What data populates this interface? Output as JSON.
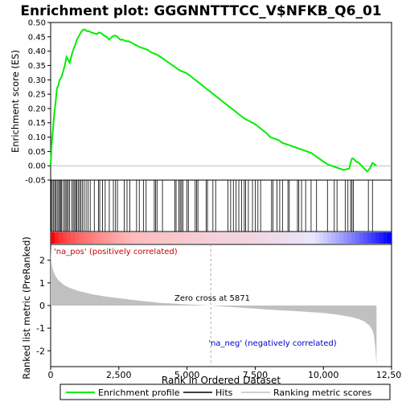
{
  "chart_data": [
    {
      "type": "line",
      "title": "Enrichment plot: GGGNNTTTCC_V$NFKB_Q6_01",
      "ylabel": "Enrichment score (ES)",
      "ylim": [
        -0.05,
        0.5
      ],
      "yticks": [
        "-0.05",
        "0.00",
        "0.05",
        "0.10",
        "0.15",
        "0.20",
        "0.25",
        "0.30",
        "0.35",
        "0.40",
        "0.45",
        "0.50"
      ],
      "line_color": "#00ee00",
      "series": [
        {
          "name": "Enrichment profile",
          "x": [
            0,
            40,
            80,
            130,
            180,
            230,
            280,
            330,
            400,
            460,
            520,
            580,
            640,
            700,
            780,
            850,
            900,
            960,
            1020,
            1080,
            1140,
            1200,
            1260,
            1330,
            1400,
            1500,
            1600,
            1700,
            1760,
            1850,
            1950,
            2050,
            2150,
            2250,
            2350,
            2450,
            2550,
            2650,
            2750,
            2850,
            2950,
            3050,
            3150,
            3250,
            3400,
            3550,
            3700,
            3850,
            3950,
            4100,
            4250,
            4400,
            4550,
            4700,
            4800,
            4950,
            5100,
            5300,
            5500,
            5700,
            5900,
            6100,
            6300,
            6500,
            6700,
            6900,
            7100,
            7300,
            7500,
            7700,
            7900,
            8050,
            8200,
            8350,
            8500,
            8650,
            8800,
            8950,
            9100,
            9250,
            9400,
            9550,
            9700,
            9850,
            10000,
            10150,
            10300,
            10450,
            10600,
            10750,
            10850,
            10950,
            11000,
            11050,
            11100,
            11200,
            11300,
            11400,
            11500,
            11600,
            11700,
            11800,
            11950
          ],
          "y": [
            0.0,
            0.08,
            0.12,
            0.18,
            0.22,
            0.27,
            0.28,
            0.3,
            0.31,
            0.33,
            0.35,
            0.38,
            0.37,
            0.36,
            0.39,
            0.41,
            0.42,
            0.44,
            0.45,
            0.46,
            0.47,
            0.475,
            0.475,
            0.47,
            0.47,
            0.465,
            0.462,
            0.46,
            0.465,
            0.463,
            0.455,
            0.45,
            0.44,
            0.45,
            0.455,
            0.45,
            0.44,
            0.44,
            0.435,
            0.435,
            0.43,
            0.425,
            0.42,
            0.415,
            0.41,
            0.405,
            0.395,
            0.39,
            0.385,
            0.375,
            0.365,
            0.355,
            0.345,
            0.335,
            0.33,
            0.325,
            0.315,
            0.3,
            0.285,
            0.27,
            0.255,
            0.24,
            0.225,
            0.21,
            0.195,
            0.18,
            0.165,
            0.155,
            0.145,
            0.13,
            0.115,
            0.1,
            0.095,
            0.09,
            0.08,
            0.075,
            0.07,
            0.065,
            0.06,
            0.055,
            0.05,
            0.045,
            0.035,
            0.025,
            0.015,
            0.005,
            0.0,
            -0.005,
            -0.01,
            -0.015,
            -0.012,
            -0.01,
            0.01,
            0.025,
            0.025,
            0.015,
            0.01,
            0.0,
            -0.01,
            -0.02,
            -0.01,
            0.01,
            0.0
          ]
        }
      ]
    },
    {
      "type": "barcode",
      "name": "Hits",
      "positions": [
        20,
        60,
        110,
        150,
        190,
        240,
        290,
        330,
        360,
        400,
        460,
        520,
        560,
        600,
        650,
        700,
        780,
        830,
        880,
        920,
        960,
        1010,
        1060,
        1110,
        1160,
        1230,
        1300,
        1370,
        1450,
        1600,
        1750,
        1800,
        1900,
        2000,
        2150,
        2300,
        2380,
        2450,
        2700,
        2800,
        2900,
        3150,
        3250,
        3400,
        3500,
        3800,
        3850,
        3900,
        4100,
        4550,
        4600,
        4700,
        4750,
        4800,
        4850,
        5000,
        5050,
        5300,
        5350,
        5400,
        5700,
        5750,
        5950,
        6050,
        6500,
        6600,
        6700,
        6800,
        6900,
        7000,
        7100,
        7150,
        7250,
        7400,
        7500,
        7600,
        7700,
        8100,
        8150,
        8300,
        8400,
        8500,
        8700,
        8750,
        9050,
        9100,
        9200,
        9350,
        9550,
        9750,
        10150,
        10400,
        10500,
        10800,
        10900,
        11000,
        11050,
        11100,
        11650,
        11800
      ]
    },
    {
      "type": "heatmap",
      "name": "Ranked list strip",
      "colors": [
        "#ff0000",
        "#ffbbbb",
        "#e8e8ff",
        "#0000ff"
      ]
    },
    {
      "type": "area",
      "ylabel": "Ranked list metric (PreRanked)",
      "xlabel": "Rank in Ordered Dataset",
      "xlim": [
        0,
        12500
      ],
      "ylim": [
        -2.7,
        2.7
      ],
      "xticks": [
        "0",
        "2,500",
        "5,000",
        "7,500",
        "10,000",
        "12,500"
      ],
      "yticks": [
        "-2",
        "-1",
        "0",
        "1",
        "2"
      ],
      "fill_color": "#c0c0c0",
      "series": [
        {
          "name": "Ranking metric scores",
          "x": [
            0,
            20,
            50,
            100,
            200,
            300,
            400,
            500,
            700,
            1000,
            1500,
            2000,
            3000,
            4000,
            5000,
            5871,
            7000,
            8000,
            9000,
            10000,
            10500,
            11000,
            11300,
            11500,
            11700,
            11800,
            11850,
            11900,
            11950
          ],
          "y": [
            2.6,
            2.0,
            1.75,
            1.5,
            1.25,
            1.1,
            1.0,
            0.9,
            0.78,
            0.65,
            0.5,
            0.4,
            0.25,
            0.12,
            0.05,
            0.0,
            -0.1,
            -0.18,
            -0.25,
            -0.33,
            -0.4,
            -0.5,
            -0.6,
            -0.7,
            -0.9,
            -1.1,
            -1.3,
            -1.8,
            -2.6
          ]
        }
      ]
    }
  ],
  "annotations": {
    "pos_label": "'na_pos' (positively correlated)",
    "neg_label": "'na_neg' (negatively correlated)",
    "zero_cross": "Zero cross at 5871",
    "zero_cross_rank": 5871
  },
  "colors": {
    "pos_label": "#cc0000",
    "neg_label": "#0000cc"
  },
  "legend": {
    "placement": "bottom",
    "items": [
      {
        "label": "Enrichment profile",
        "color": "#00ee00"
      },
      {
        "label": "Hits",
        "color": "#000000"
      },
      {
        "label": "Ranking metric scores",
        "color": "#c0c0c0"
      }
    ]
  }
}
